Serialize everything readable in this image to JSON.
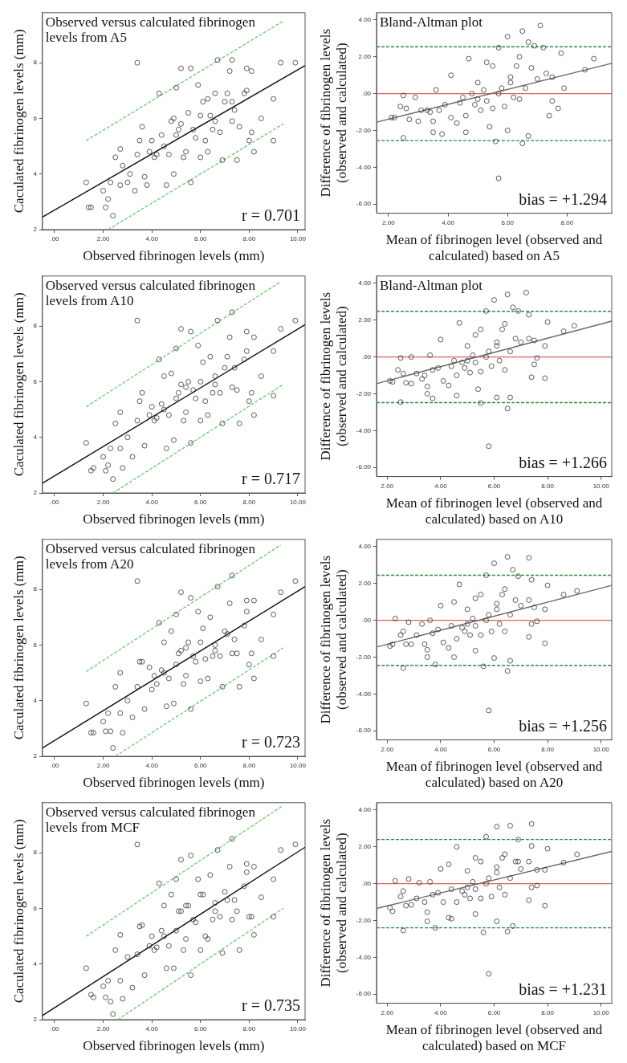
{
  "chart_data": [
    {
      "type": "scatter",
      "title": "Observed versus calculated fibrinogen levels from A5",
      "xlabel": "Observed fibrinogen levels (mm)",
      "ylabel": "Caculated fibrinogen levels (mm)",
      "xlim": [
        -0.5,
        10.3
      ],
      "xticks": [
        {
          "value": 0,
          "label": ".00"
        },
        {
          "value": 2,
          "label": "2.00"
        },
        {
          "value": 4,
          "label": "4.00"
        },
        {
          "value": 6,
          "label": "6.00"
        },
        {
          "value": 8,
          "label": "8.00"
        },
        {
          "value": 10,
          "label": "10.00"
        }
      ],
      "ylim": [
        2,
        9.8
      ],
      "yticks": [
        2,
        4,
        6,
        8
      ],
      "marker": "circle",
      "annotations": [
        "r = 0.701"
      ],
      "series": [
        {
          "type": "scatter",
          "color": "#333333",
          "x": [
            1.3,
            1.4,
            1.5,
            2.0,
            2.1,
            2.2,
            2.3,
            2.4,
            2.5,
            2.7,
            2.7,
            2.8,
            3.0,
            3.1,
            3.3,
            3.4,
            3.4,
            3.5,
            3.6,
            3.7,
            3.8,
            4.0,
            4.1,
            4.3,
            4.4,
            4.6,
            4.7,
            4.8,
            4.9,
            5.0,
            5.1,
            5.2,
            5.3,
            5.5,
            5.6,
            5.6,
            5.8,
            5.9,
            6.0,
            6.1,
            6.2,
            6.3,
            6.4,
            6.5,
            6.6,
            6.7,
            6.8,
            6.9,
            7.0,
            7.2,
            7.3,
            7.3,
            7.4,
            7.5,
            7.6,
            7.8,
            7.9,
            8.0,
            8.1,
            8.2,
            8.5,
            9.0,
            9.0,
            9.3,
            9.9,
            4.2,
            4.5,
            5.0,
            5.2,
            5.4,
            5.7,
            6.0,
            6.3,
            6.6,
            7.1,
            7.3,
            7.9,
            8.1,
            3.9,
            4.9
          ],
          "values": [
            3.7,
            2.8,
            2.8,
            3.4,
            2.8,
            3.1,
            3.7,
            2.5,
            4.6,
            3.6,
            4.9,
            4.3,
            3.7,
            4.0,
            3.4,
            8.0,
            4.7,
            5.2,
            5.7,
            3.9,
            3.6,
            5.2,
            4.6,
            6.9,
            5.4,
            3.6,
            4.7,
            5.9,
            4.0,
            7.1,
            5.6,
            7.8,
            4.6,
            6.2,
            7.8,
            3.7,
            5.3,
            7.2,
            4.6,
            6.6,
            5.2,
            4.8,
            6.1,
            5.6,
            6.9,
            8.1,
            5.5,
            4.5,
            6.6,
            7.7,
            8.1,
            5.9,
            6.3,
            4.5,
            5.7,
            6.9,
            7.8,
            5.2,
            7.7,
            4.8,
            6.0,
            6.7,
            5.2,
            8.0,
            8.0,
            4.7,
            5.0,
            5.4,
            5.8,
            4.8,
            5.6,
            6.1,
            6.7,
            5.9,
            6.9,
            6.6,
            7.0,
            5.5,
            4.8,
            6.0
          ]
        },
        {
          "type": "line",
          "color": "#111111",
          "x": [
            -0.5,
            10.3
          ],
          "values": [
            2.45,
            7.9
          ],
          "marker": "none"
        },
        {
          "type": "line",
          "color": "#77cc77",
          "line_style": "dashed",
          "x": [
            1.3,
            9.4
          ],
          "values": [
            5.2,
            9.5
          ],
          "marker": "none"
        },
        {
          "type": "line",
          "color": "#77cc77",
          "line_style": "dashed",
          "x": [
            2.2,
            9.4
          ],
          "values": [
            2.0,
            5.8
          ],
          "marker": "none"
        }
      ]
    },
    {
      "type": "scatter",
      "title": "Bland-Altman plot",
      "xlabel": "Mean of fibrinogen level (observed and calculated) based on A5",
      "ylabel": "Difference of fibrinogen levels (observed and calculated)",
      "xlim": [
        1.6,
        9.5
      ],
      "xticks": [
        {
          "value": 2,
          "label": "2.00"
        },
        {
          "value": 4,
          "label": "4.00"
        },
        {
          "value": 6,
          "label": "6.00"
        },
        {
          "value": 8,
          "label": "8.00"
        }
      ],
      "ylim": [
        -6.5,
        4.4
      ],
      "yticks": [
        {
          "value": -6,
          "label": "-6.00"
        },
        {
          "value": -4,
          "label": "-4.00"
        },
        {
          "value": -2,
          "label": "-2.00"
        },
        {
          "value": 0,
          "label": ".00"
        },
        {
          "value": 2,
          "label": "2.00"
        },
        {
          "value": 4,
          "label": "4.00"
        }
      ],
      "marker": "circle",
      "annotations": [
        "bias = +1.294"
      ],
      "ref_lines": [
        {
          "axis": "y",
          "value": 0,
          "color": "#e06060"
        },
        {
          "axis": "y",
          "value": 2.55,
          "color": "#2e8b3e",
          "line_style": "dashed"
        },
        {
          "axis": "y",
          "value": -2.55,
          "color": "#2e8b3e",
          "line_style": "dashed"
        }
      ],
      "series": [
        {
          "type": "scatter",
          "color": "#333333",
          "x": [
            2.1,
            2.2,
            2.4,
            2.5,
            2.5,
            2.6,
            2.7,
            2.9,
            3.0,
            3.1,
            3.3,
            3.4,
            3.5,
            3.5,
            3.6,
            3.7,
            3.8,
            3.9,
            4.1,
            4.1,
            4.3,
            4.4,
            4.5,
            4.6,
            4.6,
            4.7,
            4.8,
            4.9,
            5.0,
            5.1,
            5.2,
            5.3,
            5.4,
            5.5,
            5.5,
            5.6,
            5.7,
            5.7,
            5.8,
            5.9,
            6.0,
            6.0,
            6.1,
            6.2,
            6.3,
            6.4,
            6.4,
            6.5,
            6.5,
            6.6,
            6.7,
            6.7,
            6.8,
            6.9,
            7.0,
            7.1,
            7.2,
            7.3,
            7.4,
            7.5,
            7.5,
            7.7,
            7.8,
            7.9,
            8.6,
            8.9,
            5.0,
            5.3,
            5.7,
            6.1
          ],
          "values": [
            -1.3,
            -1.3,
            -0.7,
            -2.4,
            -0.1,
            -0.8,
            -1.4,
            -0.2,
            -1.5,
            -0.9,
            -0.9,
            -1.0,
            -2.1,
            -1.5,
            0.2,
            -0.9,
            -2.2,
            -0.6,
            1.0,
            -1.3,
            -1.6,
            -0.5,
            -0.2,
            -2.1,
            -1.2,
            1.9,
            0.0,
            -0.6,
            0.6,
            -0.9,
            0.2,
            1.7,
            -1.8,
            1.5,
            -0.8,
            -2.6,
            -4.6,
            2.5,
            0.3,
            -0.7,
            3.1,
            -2.0,
            0.6,
            -0.2,
            1.5,
            2.0,
            -0.3,
            -2.7,
            3.4,
            0.3,
            2.8,
            -2.3,
            1.4,
            2.6,
            0.8,
            3.7,
            2.5,
            1.1,
            -1.2,
            -0.4,
            0.9,
            -0.8,
            2.2,
            0.3,
            1.3,
            1.9,
            -0.3,
            -0.4,
            0.0,
            0.9
          ]
        },
        {
          "type": "line",
          "color": "#666666",
          "x": [
            1.6,
            9.5
          ],
          "values": [
            -1.55,
            1.65
          ],
          "marker": "none"
        }
      ]
    },
    {
      "type": "scatter",
      "title": "Observed versus calculated fibrinogen levels from A10",
      "xlabel": "Observed fibrinogen levels (mm)",
      "ylabel": "Caculated fibrinogen levels (mm)",
      "xlim": [
        -0.5,
        10.3
      ],
      "xticks": [
        {
          "value": 0,
          "label": ".00"
        },
        {
          "value": 2,
          "label": "2.00"
        },
        {
          "value": 4,
          "label": "4.00"
        },
        {
          "value": 6,
          "label": "6.00"
        },
        {
          "value": 8,
          "label": "8.00"
        },
        {
          "value": 10,
          "label": "10.00"
        }
      ],
      "ylim": [
        2,
        9.8
      ],
      "yticks": [
        2,
        4,
        6,
        8
      ],
      "marker": "circle",
      "annotations": [
        "r = 0.717"
      ],
      "series": [
        {
          "type": "scatter",
          "color": "#333333",
          "x": [
            1.3,
            1.5,
            1.6,
            2.0,
            2.1,
            2.2,
            2.3,
            2.4,
            2.5,
            2.7,
            2.7,
            2.8,
            3.0,
            3.2,
            3.4,
            3.4,
            3.5,
            3.6,
            3.7,
            3.9,
            4.0,
            4.1,
            4.3,
            4.4,
            4.5,
            4.6,
            4.7,
            4.8,
            4.9,
            5.0,
            5.1,
            5.2,
            5.3,
            5.4,
            5.5,
            5.6,
            5.6,
            5.8,
            5.9,
            6.0,
            6.1,
            6.2,
            6.3,
            6.4,
            6.5,
            6.6,
            6.7,
            6.8,
            6.9,
            7.0,
            7.2,
            7.3,
            7.3,
            7.4,
            7.5,
            7.6,
            7.8,
            7.9,
            8.0,
            8.2,
            8.2,
            8.5,
            9.0,
            9.0,
            9.3,
            9.9,
            4.2,
            4.5,
            5.0,
            5.2,
            5.4,
            5.7,
            6.0,
            6.6,
            7.1,
            7.9,
            8.1
          ],
          "values": [
            3.8,
            2.8,
            2.9,
            3.3,
            2.8,
            3.0,
            3.6,
            2.5,
            4.5,
            3.6,
            4.9,
            2.9,
            4.0,
            3.3,
            8.2,
            4.6,
            5.3,
            5.6,
            3.7,
            4.8,
            5.1,
            4.6,
            6.8,
            5.2,
            6.2,
            3.6,
            4.8,
            6.3,
            3.9,
            7.2,
            5.6,
            7.9,
            4.6,
            5.8,
            6.0,
            7.8,
            3.8,
            5.4,
            7.3,
            4.6,
            6.7,
            5.3,
            4.8,
            6.9,
            5.6,
            6.2,
            8.2,
            5.6,
            4.5,
            6.5,
            7.6,
            8.5,
            5.8,
            6.5,
            5.7,
            4.5,
            6.8,
            7.8,
            5.3,
            7.6,
            4.8,
            6.2,
            7.1,
            5.5,
            7.9,
            8.2,
            4.7,
            5.0,
            5.4,
            5.9,
            4.9,
            5.7,
            6.0,
            5.9,
            6.9,
            7.1,
            5.6
          ]
        },
        {
          "type": "line",
          "color": "#111111",
          "x": [
            -0.5,
            10.3
          ],
          "values": [
            2.35,
            8.05
          ],
          "marker": "none"
        },
        {
          "type": "line",
          "color": "#77cc77",
          "line_style": "dashed",
          "x": [
            1.3,
            9.3
          ],
          "values": [
            5.1,
            9.6
          ],
          "marker": "none"
        },
        {
          "type": "line",
          "color": "#77cc77",
          "line_style": "dashed",
          "x": [
            2.4,
            9.4
          ],
          "values": [
            2.0,
            5.9
          ],
          "marker": "none"
        }
      ]
    },
    {
      "type": "scatter",
      "title": "Bland-Altman plot",
      "xlabel": "Mean of fibrinogen level (observed and calculated) based on A10",
      "ylabel": "Difference of fibrinogen levels (observed and calculated)",
      "xlim": [
        1.6,
        10.4
      ],
      "xticks": [
        {
          "value": 2,
          "label": "2.00"
        },
        {
          "value": 4,
          "label": "4.00"
        },
        {
          "value": 6,
          "label": "6.00"
        },
        {
          "value": 8,
          "label": "8.00"
        },
        {
          "value": 10,
          "label": "10.00"
        }
      ],
      "ylim": [
        -6.5,
        4.4
      ],
      "yticks": [
        {
          "value": -6,
          "label": "-6.00"
        },
        {
          "value": -4,
          "label": "-4.00"
        },
        {
          "value": -2,
          "label": "-2.00"
        },
        {
          "value": 0,
          "label": ".00"
        },
        {
          "value": 2,
          "label": "2.00"
        },
        {
          "value": 4,
          "label": "4.00"
        }
      ],
      "marker": "circle",
      "annotations": [
        "bias = +1.266"
      ],
      "ref_lines": [
        {
          "axis": "y",
          "value": 0,
          "color": "#e06060"
        },
        {
          "axis": "y",
          "value": 2.48,
          "color": "#2e8b3e",
          "line_style": "dashed"
        },
        {
          "axis": "y",
          "value": -2.48,
          "color": "#2e8b3e",
          "line_style": "dashed"
        }
      ],
      "series": [
        {
          "type": "scatter",
          "color": "#333333",
          "x": [
            2.1,
            2.2,
            2.4,
            2.5,
            2.5,
            2.6,
            2.7,
            2.9,
            2.9,
            3.1,
            3.3,
            3.4,
            3.5,
            3.5,
            3.6,
            3.7,
            3.7,
            3.9,
            4.0,
            4.1,
            4.3,
            4.4,
            4.5,
            4.6,
            4.6,
            4.7,
            4.8,
            4.9,
            5.0,
            5.1,
            5.2,
            5.3,
            5.4,
            5.5,
            5.5,
            5.5,
            5.8,
            5.7,
            5.8,
            5.9,
            6.0,
            6.1,
            6.1,
            6.2,
            6.3,
            6.4,
            6.4,
            6.5,
            6.5,
            6.6,
            6.7,
            6.6,
            6.8,
            6.9,
            7.0,
            7.2,
            7.3,
            7.3,
            7.4,
            7.5,
            7.5,
            7.6,
            7.9,
            8.0,
            7.9,
            8.6,
            9.0,
            5.0,
            5.3,
            5.7,
            6.1
          ],
          "values": [
            -1.3,
            -1.35,
            -0.7,
            -2.45,
            -0.05,
            -0.9,
            -1.4,
            0.0,
            -1.45,
            -0.9,
            -1.2,
            -1.0,
            -2.0,
            -1.6,
            0.1,
            -0.7,
            -2.25,
            -0.6,
            0.95,
            -1.3,
            -1.55,
            -0.5,
            -0.2,
            -2.1,
            -1.0,
            1.85,
            -0.3,
            -0.6,
            0.6,
            -0.85,
            0.1,
            1.2,
            -1.75,
            1.5,
            -0.8,
            -2.5,
            -4.85,
            2.5,
            0.3,
            -0.5,
            3.1,
            -2.2,
            0.6,
            -0.2,
            1.5,
            1.8,
            -0.7,
            -2.8,
            3.4,
            0.3,
            2.7,
            -2.2,
            1.0,
            2.5,
            0.8,
            3.5,
            2.3,
            1.0,
            -1.1,
            -0.4,
            0.9,
            -0.05,
            -1.15,
            1.9,
            0.6,
            1.4,
            1.7,
            -0.2,
            -0.3,
            0.0,
            0.8
          ]
        },
        {
          "type": "line",
          "color": "#666666",
          "x": [
            1.6,
            10.4
          ],
          "values": [
            -1.45,
            1.95
          ],
          "marker": "none"
        }
      ]
    },
    {
      "type": "scatter",
      "title": "Observed versus calculated fibrinogen levels from A20",
      "xlabel": "Observed fibrinogen levels (mm)",
      "ylabel": "Caculated fibrinogen levels (mm)",
      "xlim": [
        -0.5,
        10.3
      ],
      "xticks": [
        {
          "value": 0,
          "label": ".00"
        },
        {
          "value": 2,
          "label": "2.00"
        },
        {
          "value": 4,
          "label": "4.00"
        },
        {
          "value": 6,
          "label": "6.00"
        },
        {
          "value": 8,
          "label": "8.00"
        },
        {
          "value": 10,
          "label": "10.00"
        }
      ],
      "ylim": [
        2,
        9.8
      ],
      "yticks": [
        2,
        4,
        6,
        8
      ],
      "marker": "circle",
      "annotations": [
        "r = 0.723"
      ],
      "series": [
        {
          "type": "scatter",
          "color": "#333333",
          "x": [
            1.3,
            1.5,
            1.6,
            2.0,
            2.1,
            2.2,
            2.3,
            2.4,
            2.5,
            2.7,
            2.7,
            2.8,
            3.0,
            3.2,
            3.4,
            3.4,
            3.5,
            3.6,
            3.7,
            3.9,
            4.0,
            4.1,
            4.3,
            4.4,
            4.5,
            4.6,
            4.7,
            4.8,
            4.9,
            5.0,
            5.1,
            5.2,
            5.3,
            5.4,
            5.5,
            5.6,
            5.6,
            5.8,
            5.9,
            6.0,
            6.1,
            6.2,
            6.3,
            6.4,
            6.5,
            6.6,
            6.7,
            6.8,
            6.9,
            7.0,
            7.2,
            7.3,
            7.3,
            7.4,
            7.5,
            7.6,
            7.8,
            7.9,
            8.0,
            8.2,
            8.2,
            8.5,
            9.0,
            9.0,
            9.3,
            9.9,
            4.2,
            4.5,
            5.0,
            5.2,
            5.4,
            5.7,
            6.0,
            6.6,
            7.1,
            7.9,
            8.1
          ],
          "values": [
            3.9,
            2.85,
            2.85,
            3.25,
            2.9,
            3.55,
            2.9,
            2.3,
            4.5,
            3.55,
            5.0,
            2.85,
            4.0,
            3.4,
            8.3,
            4.5,
            5.4,
            5.4,
            3.7,
            5.2,
            4.4,
            4.9,
            6.8,
            5.1,
            6.1,
            3.8,
            4.8,
            6.5,
            3.9,
            7.1,
            5.7,
            7.9,
            4.6,
            5.9,
            6.1,
            7.7,
            3.7,
            5.4,
            7.2,
            4.7,
            6.6,
            5.5,
            4.8,
            7.0,
            5.6,
            6.0,
            8.1,
            5.6,
            4.5,
            6.5,
            7.5,
            8.5,
            5.7,
            6.2,
            5.7,
            4.5,
            6.7,
            7.6,
            5.3,
            7.6,
            4.8,
            6.2,
            7.1,
            5.6,
            7.9,
            8.3,
            4.6,
            5.0,
            5.3,
            5.8,
            4.9,
            5.6,
            6.1,
            5.8,
            6.4,
            7.2,
            5.7
          ]
        },
        {
          "type": "line",
          "color": "#111111",
          "x": [
            -0.5,
            10.3
          ],
          "values": [
            2.3,
            8.1
          ],
          "marker": "none"
        },
        {
          "type": "line",
          "color": "#77cc77",
          "line_style": "dashed",
          "x": [
            1.3,
            9.3
          ],
          "values": [
            5.05,
            9.6
          ],
          "marker": "none"
        },
        {
          "type": "line",
          "color": "#77cc77",
          "line_style": "dashed",
          "x": [
            2.5,
            9.4
          ],
          "values": [
            2.0,
            5.9
          ],
          "marker": "none"
        }
      ]
    },
    {
      "type": "scatter",
      "xlabel": "Mean of fibrinogen level (observed and calculated) based on A20",
      "ylabel": "Difference of fibrinogen levels (observed and calculated)",
      "xlim": [
        1.6,
        10.4
      ],
      "xticks": [
        {
          "value": 2,
          "label": "2.00"
        },
        {
          "value": 4,
          "label": "4.00"
        },
        {
          "value": 6,
          "label": "6.00"
        },
        {
          "value": 8,
          "label": "8.00"
        },
        {
          "value": 10,
          "label": "10.00"
        }
      ],
      "ylim": [
        -6.5,
        4.4
      ],
      "yticks": [
        {
          "value": -6,
          "label": "-6.00"
        },
        {
          "value": -4,
          "label": "-4.00"
        },
        {
          "value": -2,
          "label": "-2.00"
        },
        {
          "value": 0,
          "label": ".00"
        },
        {
          "value": 2,
          "label": "2.00"
        },
        {
          "value": 4,
          "label": "4.00"
        }
      ],
      "marker": "circle",
      "annotations": [
        "bias = +1.256"
      ],
      "ref_lines": [
        {
          "axis": "y",
          "value": 0,
          "color": "#e06060"
        },
        {
          "axis": "y",
          "value": 2.45,
          "color": "#2e8b3e",
          "line_style": "dashed"
        },
        {
          "axis": "y",
          "value": -2.45,
          "color": "#2e8b3e",
          "line_style": "dashed"
        }
      ],
      "series": [
        {
          "type": "scatter",
          "color": "#333333",
          "x": [
            2.1,
            2.2,
            2.3,
            2.5,
            2.6,
            2.6,
            2.7,
            2.8,
            2.9,
            3.1,
            3.3,
            3.4,
            3.5,
            3.5,
            3.6,
            3.7,
            3.8,
            3.9,
            4.0,
            4.1,
            4.3,
            4.4,
            4.5,
            4.5,
            4.6,
            4.7,
            4.8,
            4.9,
            5.0,
            5.1,
            5.2,
            5.3,
            5.3,
            5.5,
            5.5,
            5.6,
            5.8,
            5.7,
            5.8,
            5.9,
            6.0,
            6.0,
            6.1,
            6.2,
            6.3,
            6.4,
            6.4,
            6.5,
            6.5,
            6.6,
            6.7,
            6.6,
            6.8,
            6.9,
            7.0,
            7.3,
            7.4,
            7.3,
            7.3,
            7.4,
            7.5,
            7.6,
            7.9,
            8.0,
            7.9,
            8.6,
            9.1,
            5.0,
            5.3,
            5.7,
            6.1
          ],
          "values": [
            -1.4,
            -1.3,
            0.1,
            -0.8,
            -2.6,
            -0.6,
            -1.3,
            -0.1,
            -1.3,
            -0.8,
            -0.2,
            -1.3,
            -2.0,
            -1.6,
            0.0,
            -0.7,
            -2.4,
            -0.5,
            0.8,
            -1.2,
            -1.5,
            -0.3,
            1.0,
            -2.0,
            -1.0,
            1.95,
            -0.4,
            -0.6,
            0.6,
            -0.8,
            0.1,
            1.2,
            -1.65,
            1.4,
            -0.8,
            -2.5,
            -4.9,
            2.45,
            0.3,
            -0.6,
            3.1,
            -2.05,
            0.6,
            -0.2,
            1.4,
            1.7,
            -0.6,
            -2.75,
            3.45,
            0.3,
            2.75,
            -2.2,
            1.1,
            2.4,
            0.8,
            3.4,
            2.2,
            1.1,
            -0.9,
            -0.2,
            0.7,
            -0.05,
            -1.25,
            1.9,
            0.6,
            1.4,
            1.6,
            -0.2,
            -0.3,
            0.0,
            0.9
          ]
        },
        {
          "type": "line",
          "color": "#666666",
          "x": [
            1.6,
            10.4
          ],
          "values": [
            -1.45,
            1.9
          ],
          "marker": "none"
        }
      ]
    },
    {
      "type": "scatter",
      "title": "Observed versus calculated fibrinogen levels from MCF",
      "xlabel": "Observed fibrinogen levels (mm)",
      "ylabel": "Caculated fibrinogen levels (mm)",
      "xlim": [
        -0.5,
        10.3
      ],
      "xticks": [
        {
          "value": 0,
          "label": ".00"
        },
        {
          "value": 2,
          "label": "2.00"
        },
        {
          "value": 4,
          "label": "4.00"
        },
        {
          "value": 6,
          "label": "6.00"
        },
        {
          "value": 8,
          "label": "8.00"
        },
        {
          "value": 10,
          "label": "10.00"
        }
      ],
      "ylim": [
        2,
        9.8
      ],
      "yticks": [
        2,
        4,
        6,
        8
      ],
      "marker": "circle",
      "annotations": [
        "r = 0.735"
      ],
      "series": [
        {
          "type": "scatter",
          "color": "#333333",
          "x": [
            1.3,
            1.5,
            1.6,
            2.0,
            2.1,
            2.2,
            2.3,
            2.4,
            2.5,
            2.7,
            2.7,
            2.8,
            3.0,
            3.2,
            3.4,
            3.4,
            3.5,
            3.6,
            3.7,
            3.9,
            4.0,
            4.1,
            4.3,
            4.4,
            4.5,
            4.6,
            4.7,
            4.8,
            4.9,
            5.0,
            5.1,
            5.2,
            5.3,
            5.4,
            5.5,
            5.6,
            5.6,
            5.8,
            5.9,
            6.0,
            6.1,
            6.2,
            6.3,
            6.4,
            6.5,
            6.6,
            6.7,
            6.8,
            6.9,
            7.0,
            7.2,
            7.3,
            7.3,
            7.4,
            7.5,
            7.6,
            7.8,
            7.9,
            8.0,
            8.2,
            8.2,
            8.5,
            9.0,
            9.0,
            9.3,
            9.9,
            4.2,
            4.5,
            5.0,
            5.2,
            5.4,
            5.7,
            6.0,
            6.6,
            7.1,
            7.9,
            8.1
          ],
          "values": [
            3.85,
            2.9,
            2.8,
            3.2,
            2.8,
            3.4,
            2.65,
            2.2,
            4.5,
            3.4,
            5.05,
            2.75,
            4.25,
            3.15,
            8.3,
            4.35,
            5.35,
            5.4,
            3.6,
            4.65,
            5.0,
            4.5,
            6.9,
            5.2,
            6.1,
            3.85,
            4.65,
            6.5,
            3.85,
            7.05,
            5.9,
            7.75,
            4.5,
            6.1,
            6.1,
            7.9,
            3.6,
            5.5,
            7.05,
            4.5,
            6.5,
            5.0,
            4.9,
            7.2,
            5.6,
            6.2,
            8.1,
            5.7,
            4.4,
            6.6,
            7.5,
            8.5,
            5.6,
            6.3,
            5.9,
            4.5,
            6.8,
            7.6,
            5.7,
            7.5,
            5.05,
            6.4,
            7.05,
            5.7,
            8.1,
            8.3,
            4.6,
            5.0,
            5.2,
            5.9,
            4.9,
            5.6,
            6.5,
            5.9,
            6.3,
            7.3,
            5.7
          ]
        },
        {
          "type": "line",
          "color": "#111111",
          "x": [
            -0.5,
            10.3
          ],
          "values": [
            2.15,
            8.2
          ],
          "marker": "none"
        },
        {
          "type": "line",
          "color": "#77cc77",
          "line_style": "dashed",
          "x": [
            1.3,
            9.4
          ],
          "values": [
            5.0,
            9.7
          ],
          "marker": "none"
        },
        {
          "type": "line",
          "color": "#77cc77",
          "line_style": "dashed",
          "x": [
            2.6,
            9.4
          ],
          "values": [
            2.0,
            6.0
          ],
          "marker": "none"
        }
      ]
    },
    {
      "type": "scatter",
      "xlabel": "Mean of fibrinogen level (observed and calculated) based on MCF",
      "ylabel": "Difference of fibrinogen levels (observed and calculated)",
      "xlim": [
        1.6,
        10.4
      ],
      "xticks": [
        {
          "value": 2,
          "label": "2.00"
        },
        {
          "value": 4,
          "label": "4.00"
        },
        {
          "value": 6,
          "label": "6.00"
        },
        {
          "value": 8,
          "label": "8.00"
        },
        {
          "value": 10,
          "label": "10.00"
        }
      ],
      "ylim": [
        -6.5,
        4.4
      ],
      "yticks": [
        {
          "value": -6,
          "label": "-6.00"
        },
        {
          "value": -4,
          "label": "-4.00"
        },
        {
          "value": -2,
          "label": "-2.00"
        },
        {
          "value": 0,
          "label": ".00"
        },
        {
          "value": 2,
          "label": "2.00"
        },
        {
          "value": 4,
          "label": "4.00"
        }
      ],
      "marker": "circle",
      "annotations": [
        "bias = +1.231"
      ],
      "ref_lines": [
        {
          "axis": "y",
          "value": 0,
          "color": "#e06060"
        },
        {
          "axis": "y",
          "value": 2.4,
          "color": "#2e8b3e",
          "line_style": "dashed"
        },
        {
          "axis": "y",
          "value": -2.4,
          "color": "#2e8b3e",
          "line_style": "dashed"
        }
      ],
      "series": [
        {
          "type": "scatter",
          "color": "#333333",
          "x": [
            2.1,
            2.2,
            2.3,
            2.5,
            2.6,
            2.6,
            2.7,
            2.8,
            2.9,
            3.1,
            3.2,
            3.4,
            3.5,
            3.5,
            3.6,
            3.7,
            3.8,
            3.9,
            4.0,
            4.1,
            4.3,
            4.4,
            4.3,
            4.4,
            4.6,
            4.6,
            4.8,
            4.9,
            5.0,
            5.1,
            5.2,
            5.3,
            5.3,
            5.5,
            5.5,
            5.6,
            5.8,
            5.7,
            5.8,
            5.9,
            6.1,
            6.1,
            6.1,
            6.2,
            6.3,
            6.4,
            6.4,
            6.5,
            6.6,
            6.6,
            6.9,
            6.7,
            6.8,
            6.9,
            7.0,
            7.4,
            7.4,
            7.3,
            7.3,
            7.4,
            7.6,
            7.6,
            7.9,
            8.0,
            7.9,
            8.6,
            9.1,
            5.0,
            5.3,
            5.7,
            6.1
          ],
          "values": [
            -1.3,
            -1.5,
            0.15,
            -0.7,
            -2.55,
            -0.4,
            -1.2,
            0.25,
            -1.15,
            -0.8,
            0.05,
            -1.0,
            -2.05,
            -1.55,
            0.1,
            -0.6,
            -2.4,
            -0.5,
            0.8,
            -1.0,
            -1.85,
            -0.3,
            1.05,
            -1.9,
            -1.0,
            2.0,
            -0.4,
            -0.6,
            0.7,
            -0.8,
            0.1,
            1.4,
            -1.65,
            1.2,
            -0.8,
            -2.65,
            -4.9,
            2.55,
            0.3,
            -0.7,
            3.1,
            -2.05,
            0.6,
            -0.2,
            1.4,
            1.6,
            -0.6,
            -2.6,
            3.15,
            0.3,
            2.4,
            -2.3,
            1.2,
            1.2,
            0.8,
            3.25,
            2.05,
            1.2,
            -0.9,
            -0.2,
            0.75,
            -0.1,
            -1.2,
            1.9,
            0.75,
            1.15,
            1.6,
            -0.2,
            -0.3,
            0.0,
            0.9
          ]
        },
        {
          "type": "line",
          "color": "#666666",
          "x": [
            1.6,
            10.4
          ],
          "values": [
            -1.35,
            1.75
          ],
          "marker": "none"
        }
      ]
    }
  ]
}
